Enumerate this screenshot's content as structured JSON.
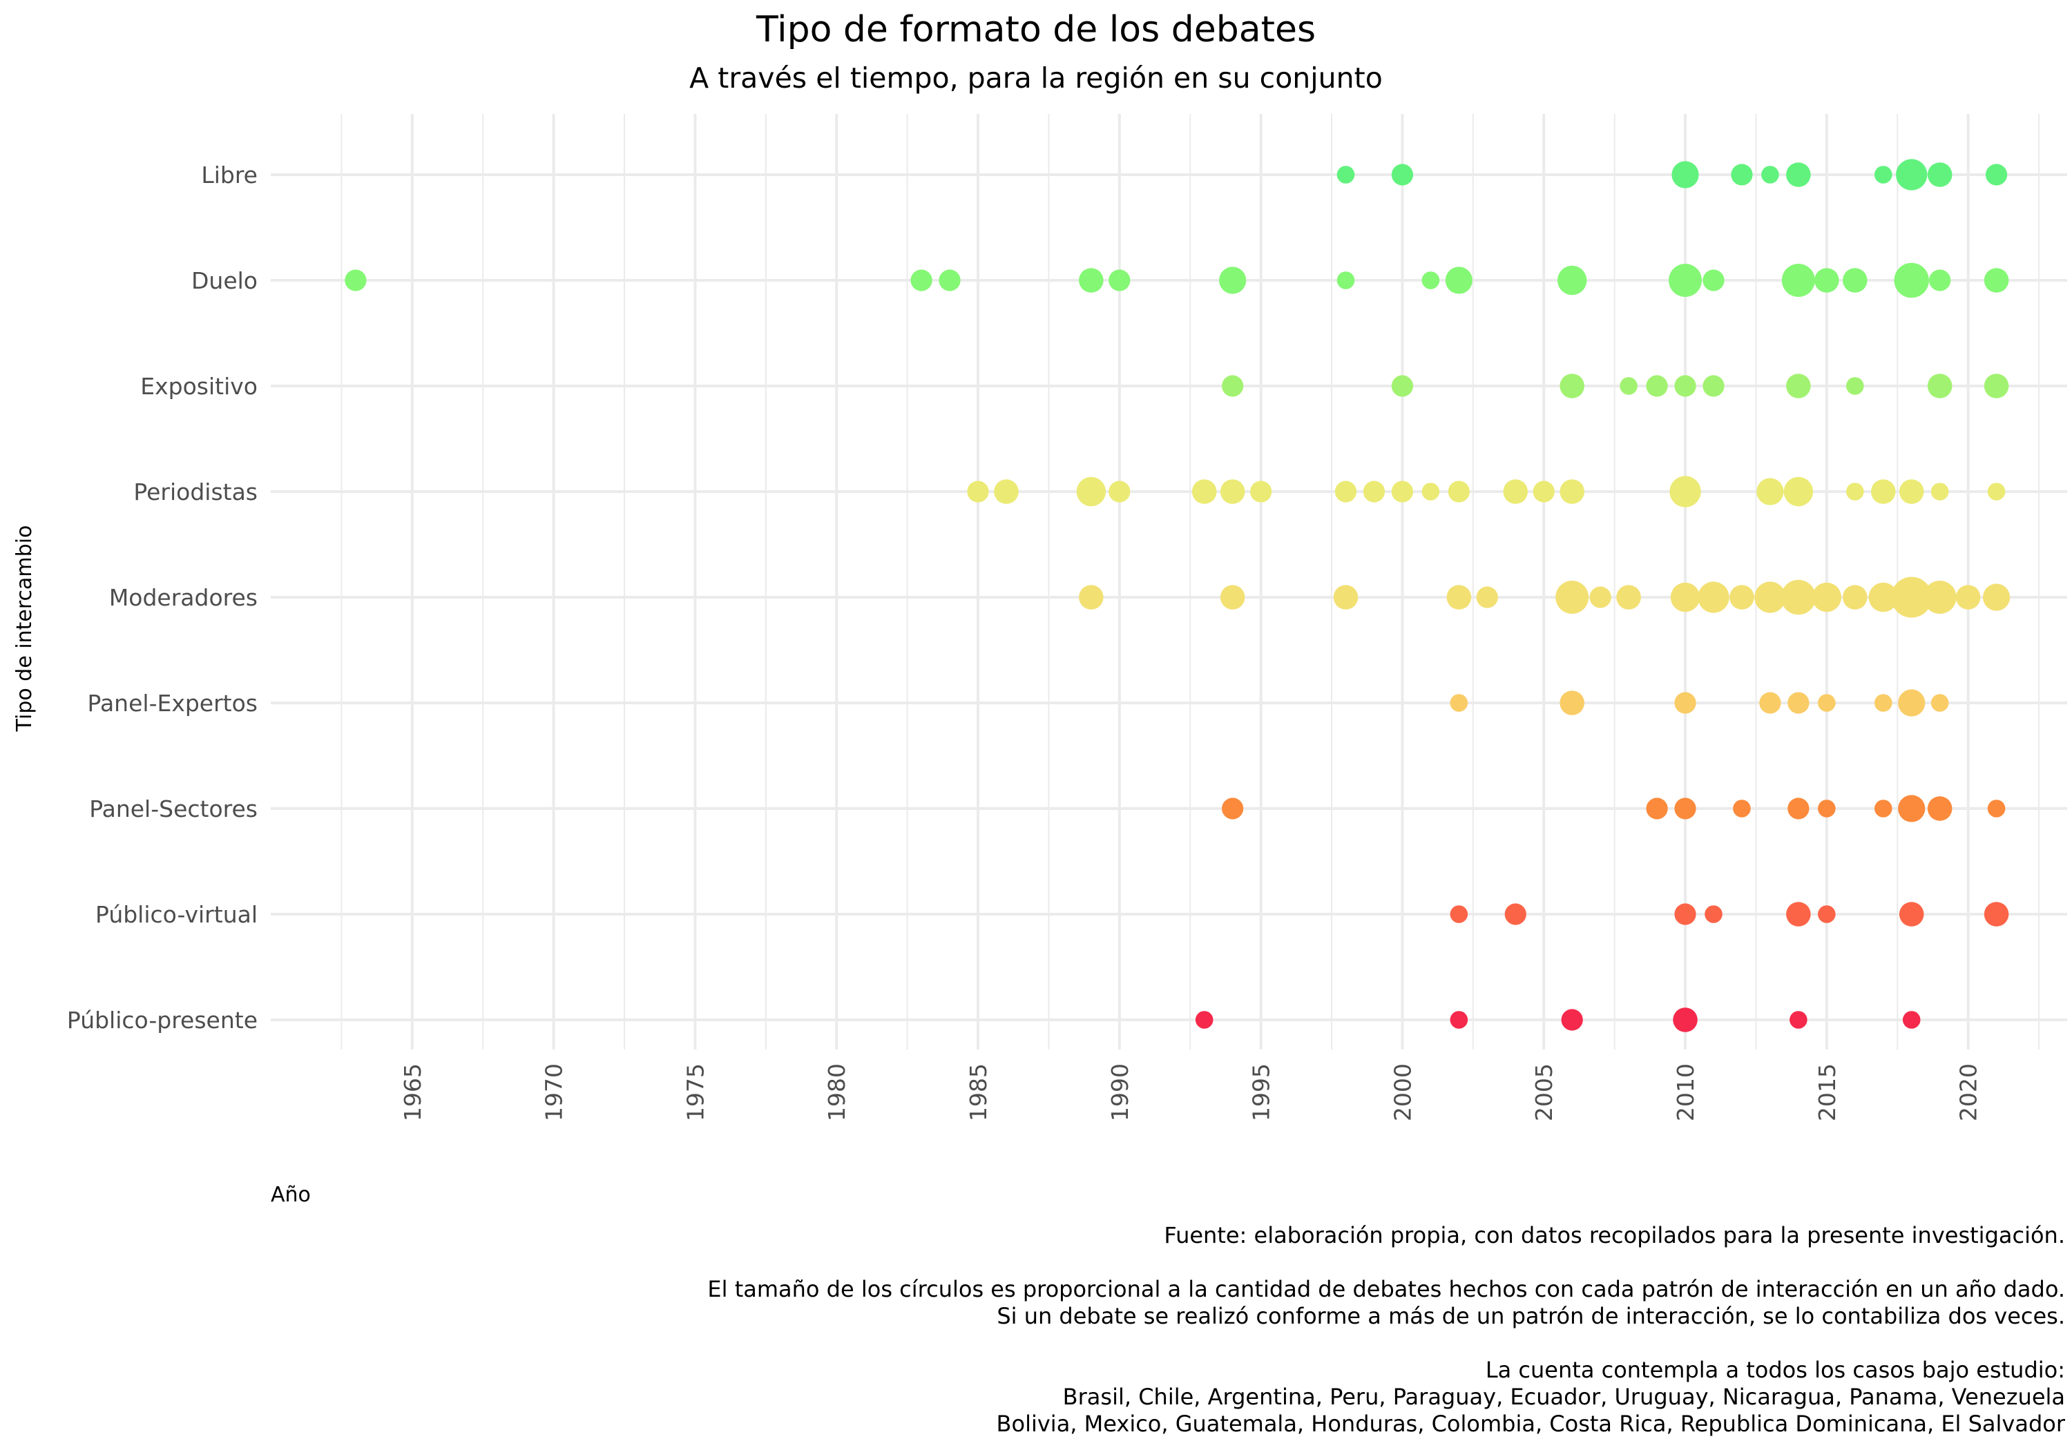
{
  "chart_data": {
    "type": "scatter",
    "title": "Tipo de formato de los debates",
    "subtitle": "A través el tiempo, para la región en su conjunto",
    "xlabel": "Año",
    "ylabel": "Tipo de intercambio",
    "xlim": [
      1960,
      2023.5
    ],
    "x_ticks": [
      1965,
      1970,
      1975,
      1980,
      1985,
      1990,
      1995,
      2000,
      2005,
      2010,
      2015,
      2020
    ],
    "categories": [
      "Libre",
      "Duelo",
      "Expositivo",
      "Periodistas",
      "Moderadores",
      "Panel-Expertos",
      "Panel-Sectores",
      "Público-virtual",
      "Público-presente"
    ],
    "grid": true,
    "legend": "none",
    "size_encoding": "count of debates per year",
    "series": [
      {
        "category": "Libre",
        "color": "#61f27e",
        "points": [
          {
            "x": 1998,
            "count": 1
          },
          {
            "x": 2000,
            "count": 2
          },
          {
            "x": 2010,
            "count": 4
          },
          {
            "x": 2012,
            "count": 2
          },
          {
            "x": 2013,
            "count": 1
          },
          {
            "x": 2014,
            "count": 3
          },
          {
            "x": 2017,
            "count": 1
          },
          {
            "x": 2018,
            "count": 6
          },
          {
            "x": 2019,
            "count": 3
          },
          {
            "x": 2021,
            "count": 2
          }
        ]
      },
      {
        "category": "Duelo",
        "color": "#84f774",
        "points": [
          {
            "x": 1963,
            "count": 2
          },
          {
            "x": 1983,
            "count": 2
          },
          {
            "x": 1984,
            "count": 2
          },
          {
            "x": 1989,
            "count": 3
          },
          {
            "x": 1990,
            "count": 2
          },
          {
            "x": 1994,
            "count": 4
          },
          {
            "x": 1998,
            "count": 1
          },
          {
            "x": 2001,
            "count": 1
          },
          {
            "x": 2002,
            "count": 4
          },
          {
            "x": 2006,
            "count": 5
          },
          {
            "x": 2010,
            "count": 7
          },
          {
            "x": 2011,
            "count": 2
          },
          {
            "x": 2014,
            "count": 7
          },
          {
            "x": 2015,
            "count": 3
          },
          {
            "x": 2016,
            "count": 3
          },
          {
            "x": 2018,
            "count": 8
          },
          {
            "x": 2019,
            "count": 2
          },
          {
            "x": 2021,
            "count": 3
          }
        ]
      },
      {
        "category": "Expositivo",
        "color": "#a2f271",
        "points": [
          {
            "x": 1994,
            "count": 2
          },
          {
            "x": 2000,
            "count": 2
          },
          {
            "x": 2006,
            "count": 3
          },
          {
            "x": 2008,
            "count": 1
          },
          {
            "x": 2009,
            "count": 2
          },
          {
            "x": 2010,
            "count": 2
          },
          {
            "x": 2011,
            "count": 2
          },
          {
            "x": 2014,
            "count": 3
          },
          {
            "x": 2016,
            "count": 1
          },
          {
            "x": 2019,
            "count": 3
          },
          {
            "x": 2021,
            "count": 3
          }
        ]
      },
      {
        "category": "Periodistas",
        "color": "#ebea74",
        "points": [
          {
            "x": 1985,
            "count": 2
          },
          {
            "x": 1986,
            "count": 3
          },
          {
            "x": 1989,
            "count": 5
          },
          {
            "x": 1990,
            "count": 2
          },
          {
            "x": 1993,
            "count": 3
          },
          {
            "x": 1994,
            "count": 3
          },
          {
            "x": 1995,
            "count": 2
          },
          {
            "x": 1998,
            "count": 2
          },
          {
            "x": 1999,
            "count": 2
          },
          {
            "x": 2000,
            "count": 2
          },
          {
            "x": 2001,
            "count": 1
          },
          {
            "x": 2002,
            "count": 2
          },
          {
            "x": 2004,
            "count": 3
          },
          {
            "x": 2005,
            "count": 2
          },
          {
            "x": 2006,
            "count": 3
          },
          {
            "x": 2010,
            "count": 6
          },
          {
            "x": 2013,
            "count": 4
          },
          {
            "x": 2014,
            "count": 5
          },
          {
            "x": 2016,
            "count": 1
          },
          {
            "x": 2017,
            "count": 3
          },
          {
            "x": 2018,
            "count": 3
          },
          {
            "x": 2019,
            "count": 1
          },
          {
            "x": 2021,
            "count": 1
          }
        ]
      },
      {
        "category": "Moderadores",
        "color": "#f2e073",
        "points": [
          {
            "x": 1989,
            "count": 3
          },
          {
            "x": 1994,
            "count": 3
          },
          {
            "x": 1998,
            "count": 3
          },
          {
            "x": 2002,
            "count": 3
          },
          {
            "x": 2003,
            "count": 2
          },
          {
            "x": 2006,
            "count": 7
          },
          {
            "x": 2007,
            "count": 2
          },
          {
            "x": 2008,
            "count": 3
          },
          {
            "x": 2010,
            "count": 5
          },
          {
            "x": 2011,
            "count": 6
          },
          {
            "x": 2012,
            "count": 3
          },
          {
            "x": 2013,
            "count": 6
          },
          {
            "x": 2014,
            "count": 8
          },
          {
            "x": 2015,
            "count": 5
          },
          {
            "x": 2016,
            "count": 3
          },
          {
            "x": 2017,
            "count": 5
          },
          {
            "x": 2018,
            "count": 12
          },
          {
            "x": 2019,
            "count": 7
          },
          {
            "x": 2020,
            "count": 3
          },
          {
            "x": 2021,
            "count": 4
          }
        ]
      },
      {
        "category": "Panel-Expertos",
        "color": "#f9cc66",
        "points": [
          {
            "x": 2002,
            "count": 1
          },
          {
            "x": 2006,
            "count": 3
          },
          {
            "x": 2010,
            "count": 2
          },
          {
            "x": 2013,
            "count": 2
          },
          {
            "x": 2014,
            "count": 2
          },
          {
            "x": 2015,
            "count": 1
          },
          {
            "x": 2017,
            "count": 1
          },
          {
            "x": 2018,
            "count": 4
          },
          {
            "x": 2019,
            "count": 1
          }
        ]
      },
      {
        "category": "Panel-Sectores",
        "color": "#fb8a3c",
        "points": [
          {
            "x": 1994,
            "count": 2
          },
          {
            "x": 2009,
            "count": 2
          },
          {
            "x": 2010,
            "count": 2
          },
          {
            "x": 2012,
            "count": 1
          },
          {
            "x": 2014,
            "count": 2
          },
          {
            "x": 2015,
            "count": 1
          },
          {
            "x": 2017,
            "count": 1
          },
          {
            "x": 2018,
            "count": 4
          },
          {
            "x": 2019,
            "count": 3
          },
          {
            "x": 2021,
            "count": 1
          }
        ]
      },
      {
        "category": "Público-virtual",
        "color": "#fc6448",
        "points": [
          {
            "x": 2002,
            "count": 1
          },
          {
            "x": 2004,
            "count": 2
          },
          {
            "x": 2010,
            "count": 2
          },
          {
            "x": 2011,
            "count": 1
          },
          {
            "x": 2014,
            "count": 3
          },
          {
            "x": 2015,
            "count": 1
          },
          {
            "x": 2018,
            "count": 3
          },
          {
            "x": 2021,
            "count": 3
          }
        ]
      },
      {
        "category": "Público-presente",
        "color": "#f5294b",
        "points": [
          {
            "x": 1993,
            "count": 1
          },
          {
            "x": 2002,
            "count": 1
          },
          {
            "x": 2006,
            "count": 2
          },
          {
            "x": 2010,
            "count": 3
          },
          {
            "x": 2014,
            "count": 1
          },
          {
            "x": 2018,
            "count": 1
          }
        ]
      }
    ],
    "caption": [
      "Fuente: elaboración propia, con datos recopilados para la presente investigación.",
      "",
      "El tamaño de los círculos es proporcional a la cantidad de debates hechos con cada patrón de interacción en un año dado.",
      "Si un debate se realizó conforme a más de un patrón de interacción, se lo contabiliza dos veces.",
      "",
      "La cuenta contempla a todos los casos bajo estudio:",
      "Brasil, Chile, Argentina, Peru, Paraguay, Ecuador, Uruguay, Nicaragua, Panama, Venezuela",
      "Bolivia, Mexico, Guatemala, Honduras, Colombia, Costa Rica, Republica Dominicana, El Salvador"
    ]
  }
}
